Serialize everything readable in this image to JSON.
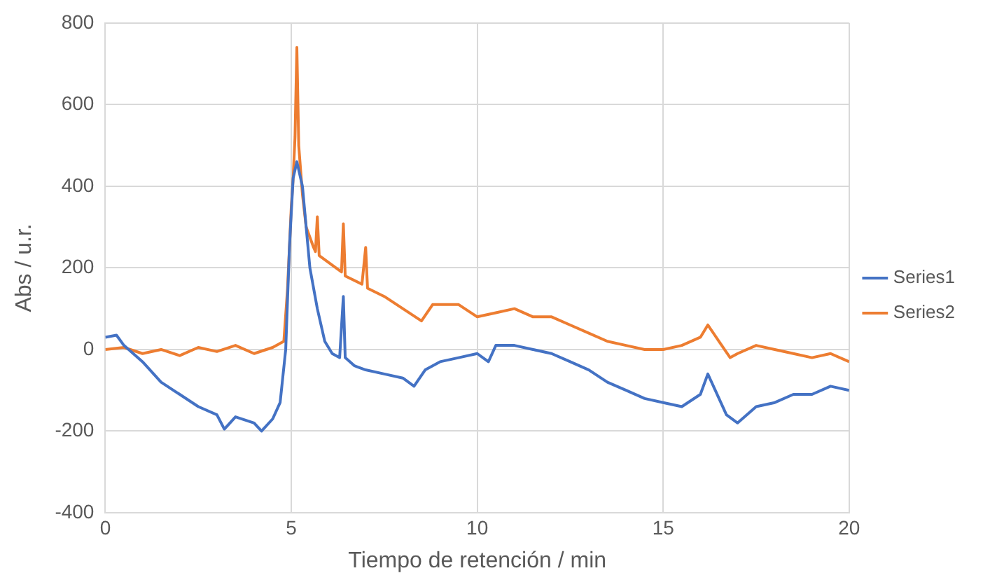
{
  "chart_data": {
    "type": "line",
    "xlabel": "Tiempo de retención / min",
    "ylabel": "Abs / u.r.",
    "xlim": [
      0,
      20
    ],
    "xticks": [
      0,
      5,
      10,
      15,
      20
    ],
    "ylim": [
      -400,
      800
    ],
    "yticks": [
      -400,
      -200,
      0,
      200,
      400,
      600,
      800
    ],
    "grid": true,
    "legend": "right",
    "marker": "none",
    "line_style": "solid",
    "series": [
      {
        "name": "Series1",
        "color": "#4472c4",
        "x": [
          0,
          0.3,
          0.5,
          1,
          1.5,
          2,
          2.5,
          3,
          3.2,
          3.5,
          4,
          4.2,
          4.5,
          4.7,
          4.85,
          4.95,
          5.05,
          5.15,
          5.3,
          5.5,
          5.7,
          5.9,
          6.1,
          6.3,
          6.4,
          6.45,
          6.7,
          7,
          7.5,
          8,
          8.3,
          8.6,
          9,
          9.5,
          10,
          10.3,
          10.5,
          11,
          11.5,
          12,
          12.5,
          13,
          13.5,
          14,
          14.5,
          15,
          15.5,
          16,
          16.2,
          16.4,
          16.7,
          17,
          17.5,
          18,
          18.5,
          19,
          19.5,
          20
        ],
        "values": [
          30,
          35,
          10,
          -30,
          -80,
          -110,
          -140,
          -160,
          -195,
          -165,
          -180,
          -200,
          -170,
          -130,
          0,
          250,
          420,
          460,
          400,
          200,
          100,
          20,
          -10,
          -20,
          130,
          -20,
          -40,
          -50,
          -60,
          -70,
          -90,
          -50,
          -30,
          -20,
          -10,
          -30,
          10,
          10,
          0,
          -10,
          -30,
          -50,
          -80,
          -100,
          -120,
          -130,
          -140,
          -110,
          -60,
          -100,
          -160,
          -180,
          -140,
          -130,
          -110,
          -110,
          -90,
          -100
        ]
      },
      {
        "name": "Series2",
        "color": "#ed7d31",
        "x": [
          0,
          0.5,
          1,
          1.5,
          2,
          2.5,
          3,
          3.5,
          4,
          4.5,
          4.8,
          4.9,
          5,
          5.05,
          5.1,
          5.15,
          5.2,
          5.3,
          5.4,
          5.6,
          5.65,
          5.7,
          5.75,
          6.2,
          6.35,
          6.4,
          6.45,
          6.9,
          7,
          7.05,
          7.5,
          8,
          8.5,
          8.8,
          9,
          9.5,
          10,
          10.5,
          11,
          11.5,
          12,
          12.5,
          13,
          13.5,
          14,
          14.5,
          15,
          15.5,
          16,
          16.2,
          16.5,
          16.8,
          17,
          17.5,
          18,
          18.5,
          19,
          19.5,
          20
        ],
        "values": [
          0,
          5,
          -10,
          0,
          -15,
          5,
          -5,
          10,
          -10,
          5,
          20,
          150,
          350,
          420,
          520,
          740,
          500,
          380,
          300,
          250,
          240,
          325,
          230,
          200,
          190,
          308,
          180,
          160,
          250,
          150,
          130,
          100,
          70,
          110,
          110,
          110,
          80,
          90,
          100,
          80,
          80,
          60,
          40,
          20,
          10,
          0,
          0,
          10,
          30,
          60,
          20,
          -20,
          -10,
          10,
          0,
          -10,
          -20,
          -10,
          -30
        ]
      }
    ]
  }
}
